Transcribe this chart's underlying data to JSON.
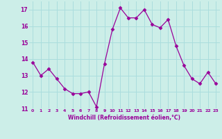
{
  "x": [
    0,
    1,
    2,
    3,
    4,
    5,
    6,
    7,
    8,
    9,
    10,
    11,
    12,
    13,
    14,
    15,
    16,
    17,
    18,
    19,
    20,
    21,
    22,
    23
  ],
  "y": [
    13.8,
    13.0,
    13.4,
    12.8,
    12.2,
    11.9,
    11.9,
    12.0,
    11.1,
    13.7,
    15.8,
    17.1,
    16.5,
    16.5,
    17.0,
    16.1,
    15.9,
    16.4,
    14.8,
    13.6,
    12.8,
    12.5,
    13.2,
    12.5
  ],
  "line_color": "#990099",
  "marker": "D",
  "marker_size": 2.5,
  "bg_color": "#cceee8",
  "grid_color": "#aadddd",
  "xlabel": "Windchill (Refroidissement éolien,°C)",
  "xlabel_color": "#990099",
  "tick_color": "#990099",
  "ylim": [
    11,
    17.5
  ],
  "yticks": [
    11,
    12,
    13,
    14,
    15,
    16,
    17
  ],
  "xlim": [
    -0.5,
    23.5
  ],
  "xticks": [
    0,
    1,
    2,
    3,
    4,
    5,
    6,
    7,
    8,
    9,
    10,
    11,
    12,
    13,
    14,
    15,
    16,
    17,
    18,
    19,
    20,
    21,
    22,
    23
  ]
}
